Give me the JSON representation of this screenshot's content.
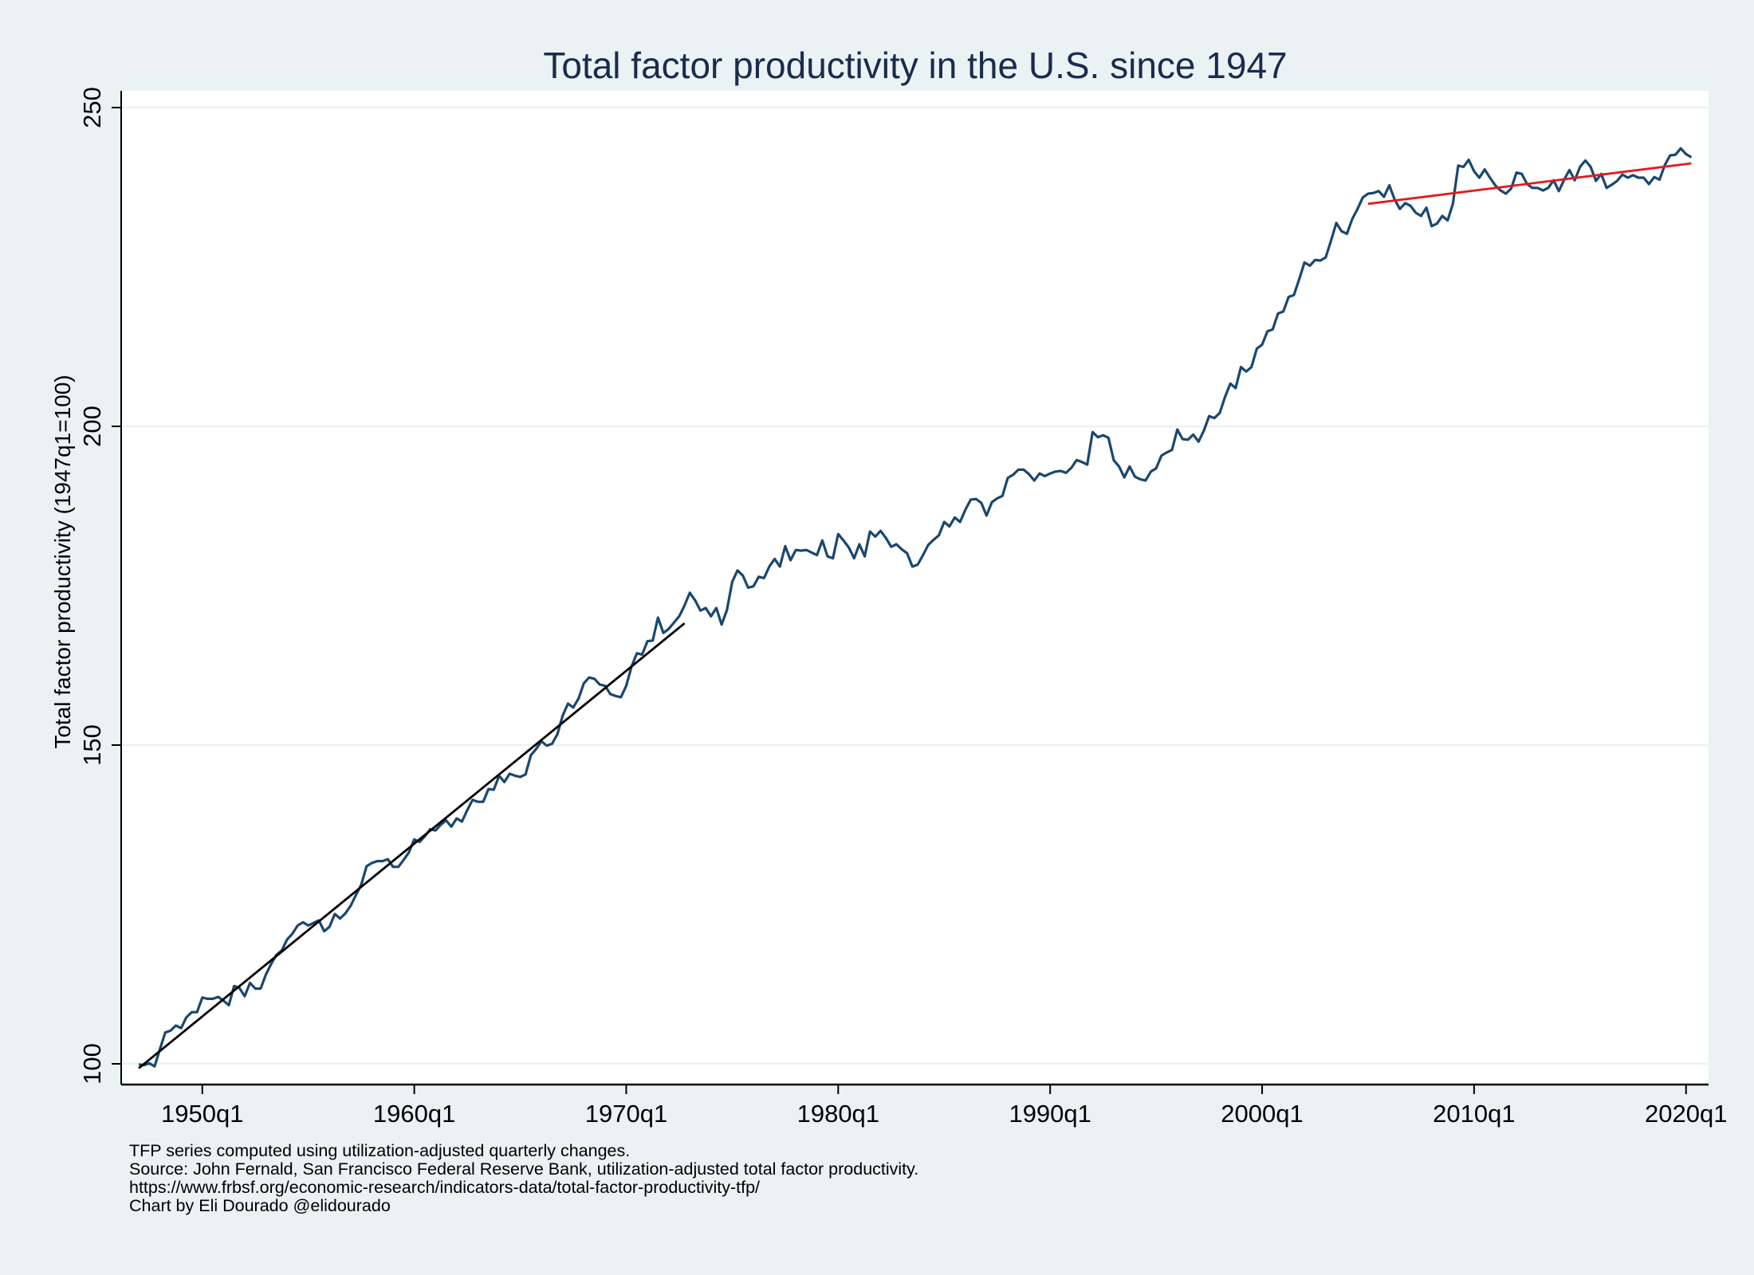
{
  "chart_data": {
    "type": "line",
    "title": "Total factor productivity in the U.S. since 1947",
    "xlabel": "",
    "ylabel": "Total factor productivity (1947q1=100)",
    "x_start": "1947q1",
    "x_frequency": "quarterly",
    "x_end": "2020q2",
    "xlim": [
      "1946q3",
      "2020q4"
    ],
    "ylim": [
      98,
      252
    ],
    "yticks": [
      100,
      150,
      200,
      250
    ],
    "xticks": [
      "1950q1",
      "1960q1",
      "1970q1",
      "1980q1",
      "1990q1",
      "2000q1",
      "2010q1",
      "2020q1"
    ],
    "grid": "horizontal",
    "colors": {
      "background": "#eaf2f3",
      "plot_background": "#ffffff",
      "grid": "#eaf2f3",
      "series": "#1a476f",
      "trend_early": "#000000",
      "trend_late": "#e41a1c",
      "title": "#1a2b4e"
    },
    "series": [
      {
        "name": "TFP",
        "values": [
          99.9,
          99.8,
          100.1,
          99.6,
          102.3,
          104.9,
          105.2,
          106,
          105.6,
          107.3,
          108.1,
          108.1,
          110.4,
          110.2,
          110.2,
          110.5,
          109.9,
          109.2,
          112.2,
          111.9,
          110.6,
          112.7,
          111.8,
          111.8,
          114,
          115.7,
          117.1,
          117.8,
          119.5,
          120.4,
          121.7,
          122.2,
          121.7,
          122.1,
          122.5,
          120.8,
          121.5,
          123.5,
          122.8,
          123.6,
          124.8,
          126.5,
          128.1,
          131,
          131.5,
          131.8,
          131.8,
          132.1,
          130.9,
          130.9,
          132,
          133.2,
          135.2,
          134.8,
          135.7,
          136.8,
          136.6,
          137.5,
          138.2,
          137.2,
          138.5,
          138,
          139.8,
          141.4,
          141.1,
          141.1,
          143.1,
          143,
          145.2,
          144.2,
          145.5,
          145.2,
          145,
          145.4,
          148.4,
          149.4,
          150.6,
          149.9,
          150.2,
          151.7,
          154.6,
          156.5,
          155.9,
          157.3,
          159.7,
          160.6,
          160.4,
          159.5,
          159.3,
          158,
          157.7,
          157.5,
          159.3,
          162.3,
          164.4,
          164.2,
          166.3,
          166.4,
          170,
          167.6,
          168.2,
          169.2,
          170.2,
          171.9,
          173.9,
          172.7,
          171.1,
          171.5,
          170.2,
          171.5,
          168.9,
          171.2,
          175.6,
          177.4,
          176.6,
          174.7,
          174.9,
          176.4,
          176.2,
          178,
          179.2,
          178,
          181.2,
          179,
          180.6,
          180.5,
          180.6,
          180.2,
          179.8,
          182.1,
          179.6,
          179.3,
          183.1,
          182.1,
          181,
          179.3,
          181.5,
          179.6,
          183.5,
          182.7,
          183.6,
          182.5,
          181.1,
          181.5,
          180.7,
          180.1,
          178,
          178.3,
          179.8,
          181.4,
          182.2,
          182.9,
          185,
          184.3,
          185.7,
          185,
          186.9,
          188.5,
          188.6,
          188,
          186,
          188.1,
          188.7,
          189.1,
          191.9,
          192.4,
          193.2,
          193.2,
          192.5,
          191.5,
          192.6,
          192.2,
          192.6,
          192.9,
          193,
          192.7,
          193.5,
          194.7,
          194.4,
          194,
          199.1,
          198.3,
          198.6,
          198.2,
          194.7,
          193.7,
          192,
          193.7,
          192.1,
          191.7,
          191.5,
          192.9,
          193.4,
          195.4,
          195.9,
          196.3,
          199.5,
          198,
          197.9,
          198.7,
          197.6,
          199.3,
          201.6,
          201.3,
          202.1,
          204.6,
          206.7,
          206,
          209.3,
          208.6,
          209.3,
          212.2,
          212.8,
          214.9,
          215.2,
          217.7,
          218,
          220.3,
          220.6,
          223.1,
          225.7,
          225.2,
          226.1,
          226,
          226.5,
          229.1,
          231.9,
          230.6,
          230.2,
          232.5,
          234.1,
          235.9,
          236.5,
          236.6,
          236.9,
          236,
          237.8,
          235.6,
          234.1,
          235,
          234.6,
          233.5,
          233,
          234.3,
          231.4,
          231.8,
          233,
          232.3,
          234.9,
          240.9,
          240.7,
          241.8,
          240,
          239,
          240.3,
          239,
          237.8,
          237,
          236.5,
          237.3,
          239.8,
          239.6,
          238,
          237.4,
          237.4,
          237,
          237.4,
          238.6,
          236.9,
          238.7,
          240.2,
          238.6,
          240.7,
          241.7,
          240.7,
          238.5,
          239.6,
          237.4,
          237.9,
          238.5,
          239.5,
          239,
          239.4,
          239,
          239,
          238,
          239.1,
          238.7,
          241,
          242.5,
          242.6,
          243.6,
          242.7,
          242.2
        ]
      }
    ],
    "trend_lines": [
      {
        "name": "trend-1947-1972",
        "start": {
          "x": "1947q1",
          "y": 99.3
        },
        "end": {
          "x": "1972q4",
          "y": 169.1
        }
      },
      {
        "name": "trend-2005-2020",
        "start": {
          "x": "2005q1",
          "y": 234.9
        },
        "end": {
          "x": "2020q2",
          "y": 241.25
        }
      }
    ],
    "notes": [
      "TFP series computed using utilization-adjusted quarterly changes.",
      "Source: John Fernald, San Francisco Federal Reserve Bank, utilization-adjusted total factor productivity.",
      "https://www.frbsf.org/economic-research/indicators-data/total-factor-productivity-tfp/",
      "Chart by Eli Dourado @elidourado"
    ]
  }
}
